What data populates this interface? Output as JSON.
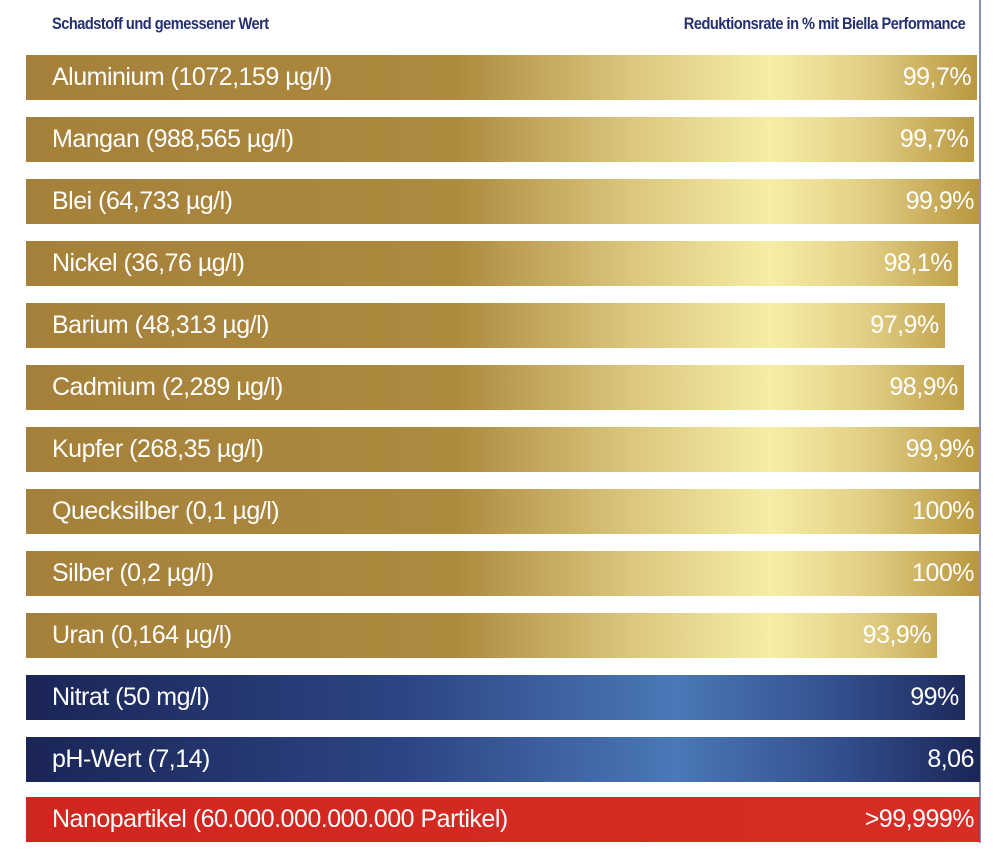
{
  "chart_data": {
    "type": "bar",
    "orientation": "horizontal",
    "header_left": "Schadstoff und gemessener Wert",
    "header_right": "Reduktionsrate in % mit Biella Performance",
    "rows": [
      {
        "label": "Aluminium (1072,159 µg/l)",
        "value": "99,7%",
        "fill": 99.7,
        "color": "gold"
      },
      {
        "label": "Mangan  (988,565 µg/l)",
        "value": "99,7%",
        "fill": 99.4,
        "color": "gold"
      },
      {
        "label": "Blei (64,733 µg/l)",
        "value": "99,9%",
        "fill": 100,
        "color": "gold"
      },
      {
        "label": "Nickel (36,76 µg/l)",
        "value": "98,1%",
        "fill": 97.7,
        "color": "gold"
      },
      {
        "label": "Barium (48,313 µg/l)",
        "value": "97,9%",
        "fill": 96.3,
        "color": "gold"
      },
      {
        "label": "Cadmium (2,289 µg/l)",
        "value": "98,9%",
        "fill": 98.3,
        "color": "gold"
      },
      {
        "label": "Kupfer (268,35 µg/l)",
        "value": "99,9%",
        "fill": 100,
        "color": "gold"
      },
      {
        "label": "Quecksilber (0,1 µg/l)",
        "value": "100%",
        "fill": 100,
        "color": "gold"
      },
      {
        "label": "Silber (0,2 µg/l)",
        "value": "100%",
        "fill": 100,
        "color": "gold"
      },
      {
        "label": "Uran (0,164 µg/l)",
        "value": "93,9%",
        "fill": 95.5,
        "color": "gold"
      },
      {
        "label": "Nitrat (50 mg/l)",
        "value": "99%",
        "fill": 98.4,
        "color": "blue"
      },
      {
        "label": "pH-Wert (7,14)",
        "value": "8,06",
        "fill": 100,
        "color": "blue"
      },
      {
        "label": "Nanopartikel (60.000.000.000.000 Partikel)",
        "value": ">99,999%",
        "fill": 100,
        "color": "red"
      }
    ],
    "colors": {
      "gold": "#a5803a",
      "gold_light": "#f6eea6",
      "blue": "#1b2556",
      "blue_light": "#4a78b8",
      "red": "#d1261f",
      "header": "#243070"
    }
  }
}
